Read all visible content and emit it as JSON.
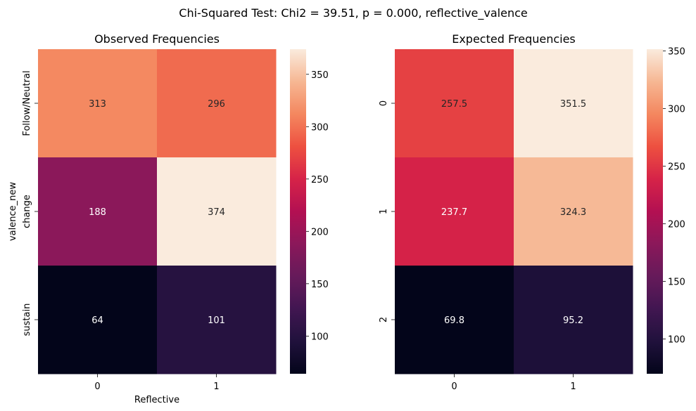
{
  "figure_title": "Chi-Squared Test: Chi2 = 39.51, p = 0.000, reflective_valence",
  "chart_data": [
    {
      "type": "heatmap",
      "title": "Observed Frequencies",
      "xlabel": "Reflective",
      "ylabel": "valence_new",
      "x_categories": [
        "0",
        "1"
      ],
      "y_categories": [
        "Follow/Neutral",
        "change",
        "sustain"
      ],
      "values": [
        [
          313,
          296
        ],
        [
          188,
          374
        ],
        [
          64,
          101
        ]
      ],
      "annotations": [
        [
          "313",
          "296"
        ],
        [
          "188",
          "374"
        ],
        [
          "64",
          "101"
        ]
      ],
      "colorbar": {
        "vmin": 64,
        "vmax": 374,
        "ticks": [
          100,
          150,
          200,
          250,
          300,
          350
        ]
      },
      "colormap": "rocket"
    },
    {
      "type": "heatmap",
      "title": "Expected Frequencies",
      "xlabel": "",
      "ylabel": "",
      "x_categories": [
        "0",
        "1"
      ],
      "y_categories": [
        "0",
        "1",
        "2"
      ],
      "values": [
        [
          257.5,
          351.5
        ],
        [
          237.7,
          324.3
        ],
        [
          69.8,
          95.2
        ]
      ],
      "annotations": [
        [
          "257.5",
          "351.5"
        ],
        [
          "237.7",
          "324.3"
        ],
        [
          "69.8",
          "95.2"
        ]
      ],
      "colorbar": {
        "vmin": 69.8,
        "vmax": 351.5,
        "ticks": [
          100,
          150,
          200,
          250,
          300,
          350
        ]
      },
      "colormap": "rocket"
    }
  ]
}
